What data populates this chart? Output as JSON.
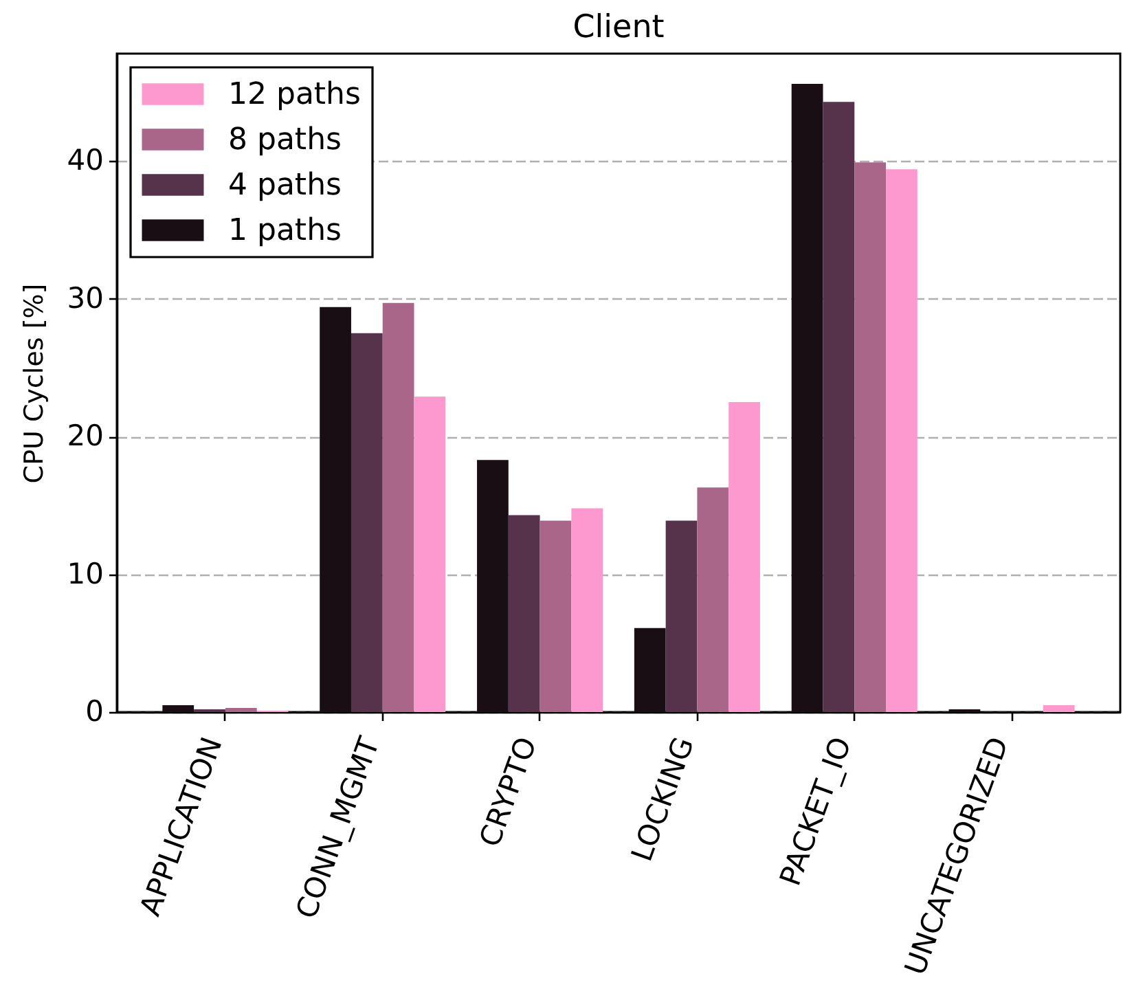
{
  "chart_data": {
    "type": "bar",
    "title": "Client",
    "ylabel": "CPU Cycles [%]",
    "categories": [
      "APPLICATION",
      "CONN_MGMT",
      "CRYPTO",
      "LOCKING",
      "PACKET_IO",
      "UNCATEGORIZED"
    ],
    "series": [
      {
        "name": "1 paths",
        "color": "#180e13",
        "values": [
          0.5,
          29.4,
          18.3,
          6.1,
          45.6,
          0.2
        ]
      },
      {
        "name": "4 paths",
        "color": "#56334a",
        "values": [
          0.2,
          27.5,
          14.3,
          13.9,
          44.3,
          0
        ]
      },
      {
        "name": "8 paths",
        "color": "#aa6688",
        "values": [
          0.3,
          29.7,
          13.9,
          16.3,
          39.9,
          0
        ]
      },
      {
        "name": "12 paths",
        "color": "#fe99cf",
        "values": [
          0.1,
          22.9,
          14.8,
          22.5,
          39.4,
          0.5
        ]
      }
    ],
    "ylim": [
      0,
      47.8
    ],
    "yticks": [
      0,
      10,
      20,
      30,
      40
    ],
    "grid": "y",
    "legend": "top left"
  }
}
